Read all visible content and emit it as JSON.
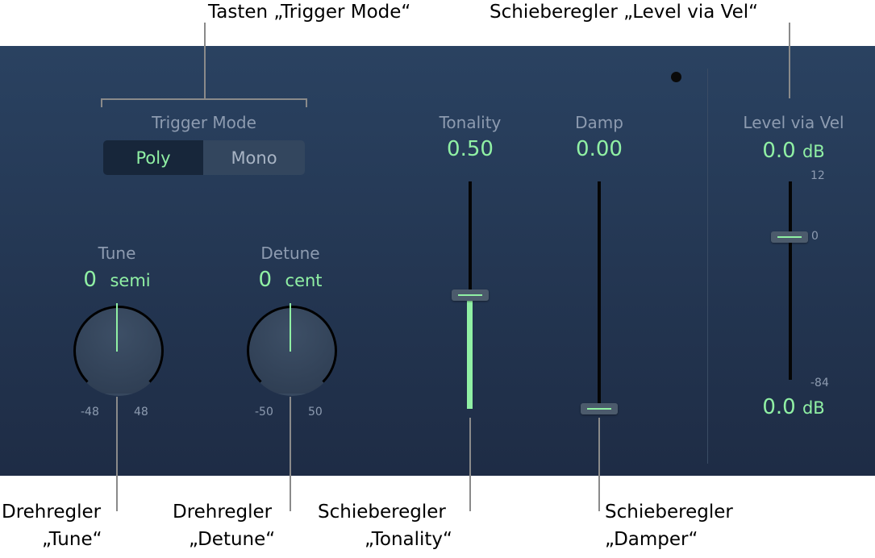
{
  "callouts": {
    "trigger_mode": "Tasten „Trigger Mode“",
    "level_via_vel": "Schieberegler „Level via Vel“",
    "tune_line1": "Drehregler",
    "tune_line2": "„Tune“",
    "detune_line1": "Drehregler",
    "detune_line2": "„Detune“",
    "tonality_line1": "Schieberegler",
    "tonality_line2": "„Tonality“",
    "damper_line1": "Schieberegler",
    "damper_line2": "„Damper“"
  },
  "trigger_mode": {
    "label": "Trigger Mode",
    "options": [
      "Poly",
      "Mono"
    ],
    "selected": "Poly"
  },
  "tune": {
    "label": "Tune",
    "value": "0",
    "unit": "semi",
    "min": "-48",
    "max": "48"
  },
  "detune": {
    "label": "Detune",
    "value": "0",
    "unit": "cent",
    "min": "-50",
    "max": "50"
  },
  "tonality": {
    "label": "Tonality",
    "value": "0.50",
    "fraction": 0.5
  },
  "damp": {
    "label": "Damp",
    "value": "0.00",
    "fraction": 0.0
  },
  "level_via_vel": {
    "label": "Level via Vel",
    "top_value": "0.0",
    "top_unit": "dB",
    "bottom_value": "0.0",
    "bottom_unit": "dB",
    "scale_max": "12",
    "scale_zero": "0",
    "scale_min": "-84"
  },
  "colors": {
    "accent": "#90f0a4",
    "panel": "#24364f"
  }
}
